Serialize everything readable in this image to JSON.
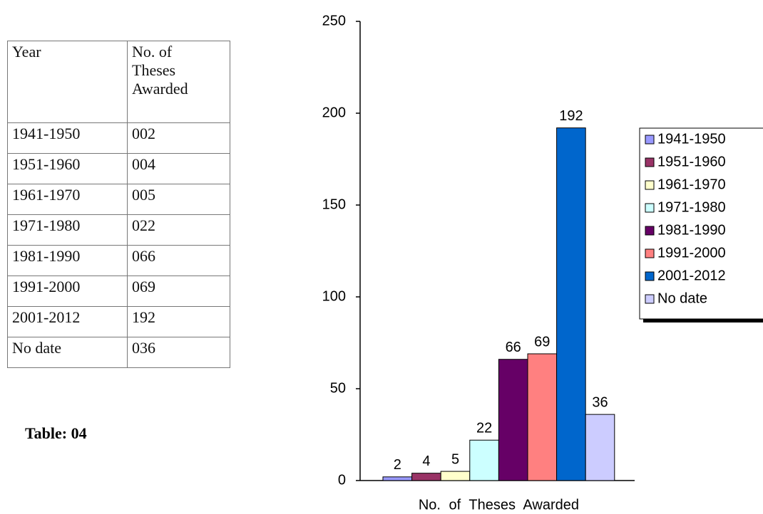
{
  "table": {
    "header": [
      "Year",
      "No. of Theses Awarded"
    ],
    "rows": [
      [
        "1941-1950",
        "002"
      ],
      [
        "1951-1960",
        "004"
      ],
      [
        "1961-1970",
        "005"
      ],
      [
        "1971-1980",
        "022"
      ],
      [
        "1981-1990",
        "066"
      ],
      [
        "1991-2000",
        "069"
      ],
      [
        "2001-2012",
        "192"
      ],
      [
        "No date",
        "036"
      ]
    ]
  },
  "caption": "Table: 04",
  "chart_data": {
    "type": "bar",
    "categories": [
      "No. of Theses Awarded"
    ],
    "series": [
      {
        "name": "1941-1950",
        "color": "#9999ff",
        "values": [
          2
        ]
      },
      {
        "name": "1951-1960",
        "color": "#993366",
        "values": [
          4
        ]
      },
      {
        "name": "1961-1970",
        "color": "#ffffcc",
        "values": [
          5
        ]
      },
      {
        "name": "1971-1980",
        "color": "#ccffff",
        "values": [
          22
        ]
      },
      {
        "name": "1981-1990",
        "color": "#660066",
        "values": [
          66
        ]
      },
      {
        "name": "1991-2000",
        "color": "#ff8080",
        "values": [
          69
        ]
      },
      {
        "name": "2001-2012",
        "color": "#0066cc",
        "values": [
          192
        ]
      },
      {
        "name": "No date",
        "color": "#ccccff",
        "values": [
          36
        ]
      }
    ],
    "ylim": [
      0,
      250
    ],
    "yticks": [
      0,
      50,
      100,
      150,
      200,
      250
    ],
    "legend": "right"
  }
}
